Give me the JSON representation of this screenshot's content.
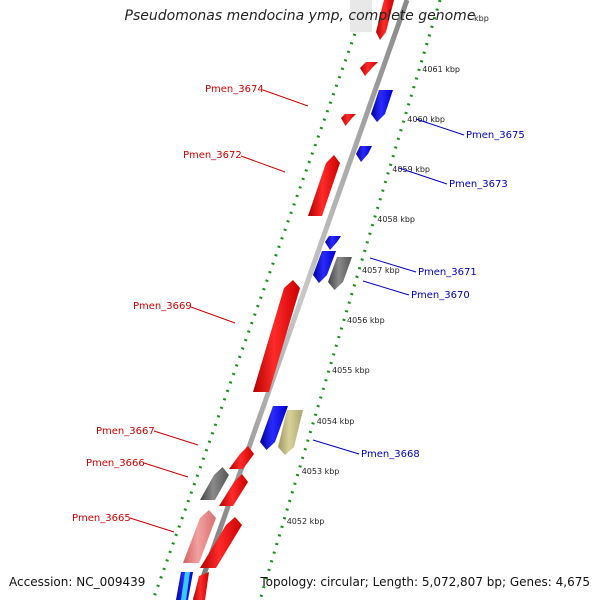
{
  "title": "Pseudomonas mendocina ymp, complete genome",
  "footer": {
    "accession": "Accession: NC_009439",
    "summary": "Topology: circular; Length: 5,072,807 bp; Genes: 4,675"
  },
  "colors": {
    "red": "#ff1a1a",
    "blue": "#1a1aee",
    "gray": "#777777",
    "pink": "#f08080",
    "olive": "#c8c28a",
    "cyan": "#33ccff",
    "backbone": "#999999",
    "dots": "#1b8f1b",
    "label_red": "#cc0000",
    "label_blue": "#0000bb"
  },
  "scale_ticks": [
    {
      "label": "4061 kbp",
      "kbp": 4061
    },
    {
      "label": "4060 kbp",
      "kbp": 4060
    },
    {
      "label": "4059 kbp",
      "kbp": 4059
    },
    {
      "label": "4058 kbp",
      "kbp": 4058
    },
    {
      "label": "4057 kbp",
      "kbp": 4057
    },
    {
      "label": "4056 kbp",
      "kbp": 4056
    },
    {
      "label": "4055 kbp",
      "kbp": 4055
    },
    {
      "label": "4054 kbp",
      "kbp": 4054
    },
    {
      "label": "4053 kbp",
      "kbp": 4053
    },
    {
      "label": "4052 kbp",
      "kbp": 4052
    }
  ],
  "gene_labels": [
    {
      "name": "Pmen_3674",
      "strand": "left"
    },
    {
      "name": "Pmen_3672",
      "strand": "left"
    },
    {
      "name": "Pmen_3669",
      "strand": "left"
    },
    {
      "name": "Pmen_3667",
      "strand": "left"
    },
    {
      "name": "Pmen_3666",
      "strand": "left"
    },
    {
      "name": "Pmen_3665",
      "strand": "left"
    },
    {
      "name": "Pmen_3675",
      "strand": "right"
    },
    {
      "name": "Pmen_3673",
      "strand": "right"
    },
    {
      "name": "Pmen_3671",
      "strand": "right"
    },
    {
      "name": "Pmen_3670",
      "strand": "right"
    },
    {
      "name": "Pmen_3668",
      "strand": "right"
    }
  ]
}
